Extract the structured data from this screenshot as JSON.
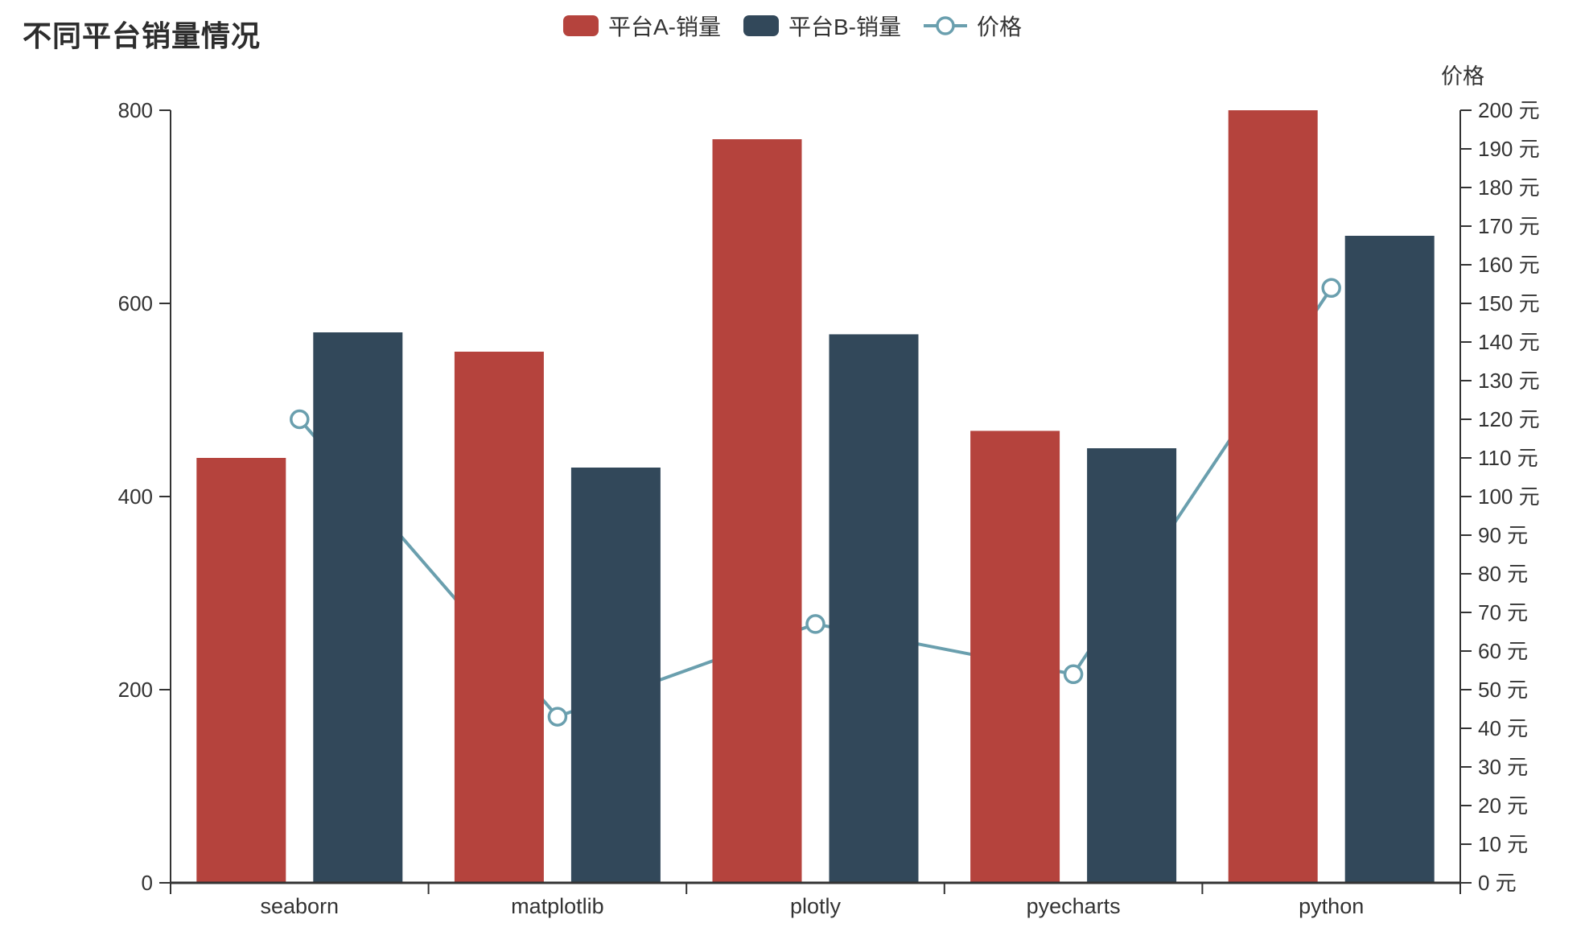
{
  "title": "不同平台销量情况",
  "legend": {
    "position": "top-center",
    "items": [
      {
        "id": "platform-a-sales",
        "label": "平台A-销量",
        "marker": "rounded-rect",
        "color": "#b5433d"
      },
      {
        "id": "platform-b-sales",
        "label": "平台B-销量",
        "marker": "rounded-rect",
        "color": "#32485a"
      },
      {
        "id": "price",
        "label": "价格",
        "marker": "line-circle",
        "color": "#6a9fae"
      }
    ]
  },
  "chart_data": {
    "type": "bar",
    "subtype": "grouped-bars-with-line-overlay",
    "title": "不同平台销量情况",
    "categories": [
      "seaborn",
      "matplotlib",
      "plotly",
      "pyecharts",
      "python"
    ],
    "series": [
      {
        "name": "平台A-销量",
        "type": "bar",
        "axis": "left",
        "color": "#b5433d",
        "values": [
          440,
          550,
          770,
          468,
          800
        ]
      },
      {
        "name": "平台B-销量",
        "type": "bar",
        "axis": "left",
        "color": "#32485a",
        "values": [
          570,
          430,
          568,
          450,
          670
        ]
      },
      {
        "name": "价格",
        "type": "line",
        "axis": "right",
        "color": "#6a9fae",
        "marker": "hollow-circle",
        "values": [
          120,
          43,
          67,
          54,
          154
        ]
      }
    ],
    "left_axis": {
      "min": 0,
      "max": 800,
      "interval": 200,
      "tick_labels": [
        "0",
        "200",
        "400",
        "600",
        "800"
      ]
    },
    "right_axis": {
      "name": "价格",
      "min": 0,
      "max": 200,
      "interval": 10,
      "unit": "元",
      "tick_labels": [
        "0 元",
        "10 元",
        "20 元",
        "30 元",
        "40 元",
        "50 元",
        "60 元",
        "70 元",
        "80 元",
        "90 元",
        "100 元",
        "110 元",
        "120 元",
        "130 元",
        "140 元",
        "150 元",
        "160 元",
        "170 元",
        "180 元",
        "190 元",
        "200 元"
      ]
    },
    "grid_lines": false,
    "background": "#ffffff",
    "axis_color": "#333333",
    "line_behind_bars": true
  }
}
